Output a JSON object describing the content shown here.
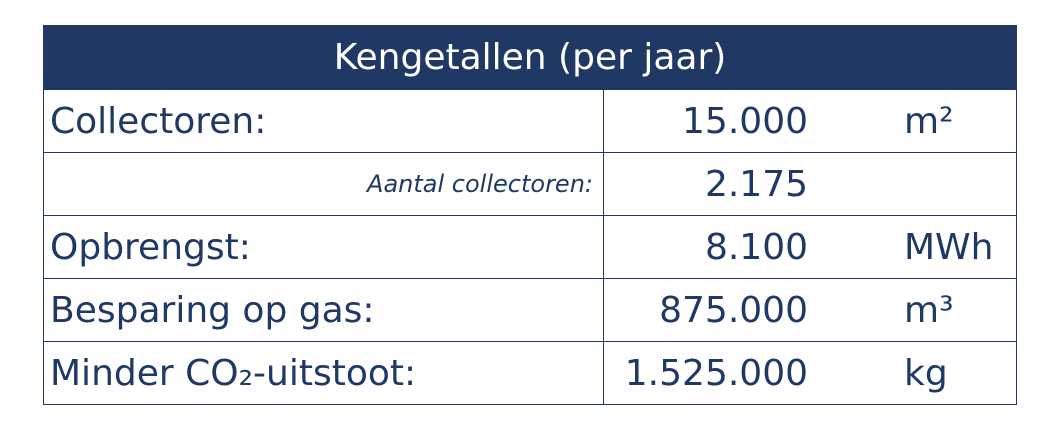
{
  "table": {
    "title": "Kengetallen (per jaar)",
    "rows": [
      {
        "label": "Collectoren:",
        "value": "15.000",
        "unit": "m²"
      },
      {
        "label": "Aantal collectoren:",
        "value": "2.175"
      },
      {
        "label": "Opbrengst:",
        "value": "8.100",
        "unit": "MWh"
      },
      {
        "label": "Besparing op gas:",
        "value": "875.000",
        "unit": "m³"
      },
      {
        "label": "Minder CO₂-uitstoot:",
        "value": "1.525.000",
        "unit": "kg"
      }
    ]
  }
}
